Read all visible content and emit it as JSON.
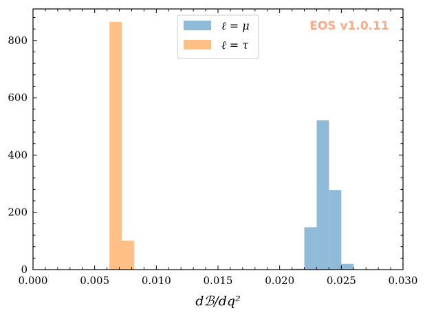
{
  "chart_data": {
    "type": "bar",
    "subtype": "histogram",
    "xlabel": "dℬ/dq²",
    "ylabel": "",
    "xlim": [
      0.0,
      0.03
    ],
    "ylim": [
      0,
      910
    ],
    "x_ticks": [
      "0.000",
      "0.005",
      "0.010",
      "0.015",
      "0.020",
      "0.025",
      "0.030"
    ],
    "y_ticks": [
      "0",
      "200",
      "400",
      "600",
      "800"
    ],
    "x_tick_values": [
      0.0,
      0.005,
      0.01,
      0.015,
      0.02,
      0.025,
      0.03
    ],
    "y_tick_values": [
      0,
      200,
      400,
      600,
      800
    ],
    "grid": false,
    "legend_position": "top-center",
    "watermark": "EOS v1.0.11",
    "watermark_color": "#fca98a",
    "series": [
      {
        "name": "ℓ = μ",
        "color": "#1f77b4",
        "alpha": 0.5,
        "bin_edges": [
          0.0,
          0.001,
          0.002,
          0.003,
          0.004,
          0.005,
          0.006,
          0.007,
          0.008,
          0.009,
          0.01,
          0.011,
          0.012,
          0.013,
          0.014,
          0.015,
          0.016,
          0.017,
          0.018,
          0.019,
          0.02,
          0.021,
          0.022,
          0.023,
          0.024,
          0.025,
          0.026,
          0.027,
          0.028,
          0.029,
          0.03
        ],
        "counts": [
          0,
          0,
          0,
          0,
          0,
          0,
          0,
          0,
          0,
          0,
          0,
          0,
          0,
          0,
          0,
          0,
          0,
          0,
          0,
          0,
          0,
          3,
          148,
          521,
          278,
          20,
          1,
          0,
          0,
          0
        ]
      },
      {
        "name": "ℓ = τ",
        "color": "#ff7f0e",
        "alpha": 0.5,
        "bin_edges": [
          0.0,
          0.001,
          0.002,
          0.003,
          0.004,
          0.005,
          0.0062,
          0.0072,
          0.0082,
          0.0092,
          0.0102,
          0.0112,
          0.0122,
          0.0132,
          0.0142,
          0.0152,
          0.0162,
          0.0172,
          0.0182,
          0.0192,
          0.0202,
          0.0212,
          0.0222,
          0.0232,
          0.0242,
          0.0252,
          0.0262,
          0.0272,
          0.0282,
          0.0292,
          0.03
        ],
        "counts": [
          0,
          0,
          0,
          0,
          0,
          0,
          865,
          101,
          0,
          0,
          0,
          0,
          0,
          0,
          0,
          0,
          0,
          0,
          0,
          0,
          0,
          0,
          0,
          0,
          0,
          0,
          0,
          0,
          0,
          0
        ]
      }
    ]
  }
}
